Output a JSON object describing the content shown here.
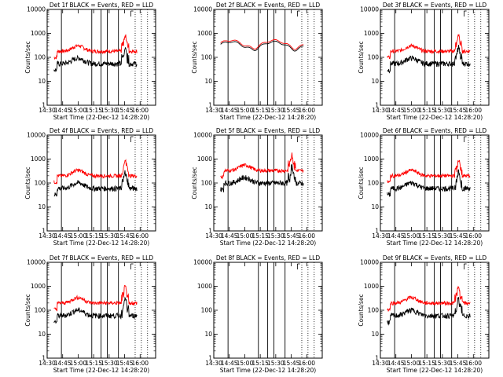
{
  "chart_data": {
    "type": "line",
    "yscale": "log",
    "ylim": [
      1,
      10000
    ],
    "xlim_hours": [
      14.5,
      16.25
    ],
    "xtick_labels": [
      "14:30",
      "14:45",
      "15:00",
      "15:15",
      "15:30",
      "15:45",
      "16:00"
    ],
    "ytick_labels": [
      "1",
      "10",
      "100",
      "1000",
      "10000"
    ],
    "ylabel": "Counts/sec",
    "xlabel": "Start Time (22-Dec-12 14:28:20)",
    "panel_titles": [
      "Det 1f BLACK = Events, RED = LLD",
      "Det 2f BLACK = Events, RED = LLD",
      "Det 3f BLACK = Events, RED = LLD",
      "Det 4f BLACK = Events, RED = LLD",
      "Det 5f BLACK = Events, RED = LLD",
      "Det 6f BLACK = Events, RED = LLD",
      "Det 7f BLACK = Events, RED = LLD",
      "Det 8f BLACK = Events, RED = LLD",
      "Det 9f BLACK = Events, RED = LLD"
    ],
    "series_colors": {
      "events": "#000000",
      "lld": "#ff0000"
    },
    "panels": [
      {
        "events_level": 55,
        "lld_level": 180,
        "show_ylabel": true,
        "curves": true
      },
      {
        "events_level": 330,
        "lld_level": 380,
        "show_ylabel": true,
        "curves": true,
        "smooth": true
      },
      {
        "events_level": 55,
        "lld_level": 180,
        "show_ylabel": true,
        "curves": true
      },
      {
        "events_level": 60,
        "lld_level": 200,
        "show_ylabel": true,
        "curves": true
      },
      {
        "events_level": 100,
        "lld_level": 330,
        "show_ylabel": true,
        "curves": true
      },
      {
        "events_level": 60,
        "lld_level": 200,
        "show_ylabel": true,
        "curves": true
      },
      {
        "events_level": 60,
        "lld_level": 200,
        "show_ylabel": true,
        "curves": true
      },
      {
        "events_level": 0,
        "lld_level": 0,
        "show_ylabel": false,
        "curves": false
      },
      {
        "events_level": 60,
        "lld_level": 200,
        "show_ylabel": true,
        "curves": true
      }
    ]
  }
}
